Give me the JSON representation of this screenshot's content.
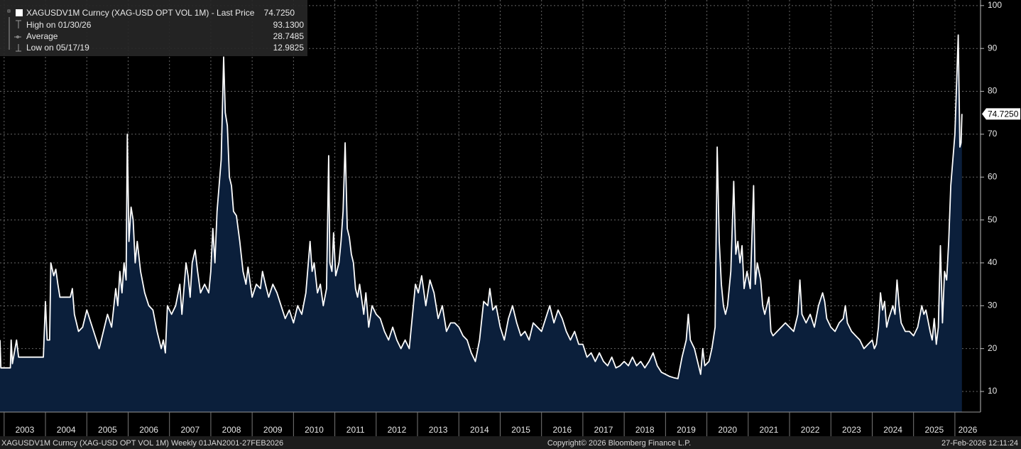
{
  "header": {
    "title": "XAGUSDV1M Curncy (XAG-USD OPT VOL 1M) - Last Price",
    "last_price": "74.7250",
    "rows": [
      {
        "label": "High on 01/30/26",
        "value": "93.1300"
      },
      {
        "label": "Average",
        "value": "28.7485"
      },
      {
        "label": "Low on 05/17/19",
        "value": "12.9825"
      }
    ]
  },
  "chart_data": {
    "type": "area",
    "color": "#ffffff",
    "fill": "#0b1f3b",
    "x": [
      2002.9,
      2002.92,
      2003.15,
      2003.17,
      2003.2,
      2003.3,
      2003.35,
      2003.95,
      2004.0,
      2004.04,
      2004.1,
      2004.13,
      2004.2,
      2004.25,
      2004.3,
      2004.35,
      2004.6,
      2004.65,
      2004.7,
      2004.8,
      2004.9,
      2005.0,
      2005.1,
      2005.2,
      2005.3,
      2005.4,
      2005.5,
      2005.6,
      2005.7,
      2005.75,
      2005.8,
      2005.85,
      2005.9,
      2005.95,
      2005.98,
      2006.02,
      2006.07,
      2006.12,
      2006.17,
      2006.22,
      2006.3,
      2006.4,
      2006.5,
      2006.6,
      2006.7,
      2006.8,
      2006.85,
      2006.9,
      2006.95,
      2007.05,
      2007.15,
      2007.25,
      2007.3,
      2007.4,
      2007.45,
      2007.5,
      2007.55,
      2007.62,
      2007.68,
      2007.75,
      2007.85,
      2007.95,
      2008.0,
      2008.05,
      2008.1,
      2008.15,
      2008.2,
      2008.25,
      2008.31,
      2008.35,
      2008.4,
      2008.45,
      2008.5,
      2008.55,
      2008.62,
      2008.7,
      2008.78,
      2008.85,
      2008.9,
      2009.0,
      2009.1,
      2009.2,
      2009.25,
      2009.32,
      2009.4,
      2009.5,
      2009.6,
      2009.7,
      2009.8,
      2009.9,
      2010.0,
      2010.1,
      2010.2,
      2010.3,
      2010.4,
      2010.45,
      2010.5,
      2010.58,
      2010.65,
      2010.72,
      2010.8,
      2010.85,
      2010.88,
      2010.93,
      2010.97,
      2011.02,
      2011.1,
      2011.15,
      2011.2,
      2011.25,
      2011.3,
      2011.35,
      2011.4,
      2011.45,
      2011.5,
      2011.55,
      2011.6,
      2011.7,
      2011.75,
      2011.82,
      2011.9,
      2012.0,
      2012.1,
      2012.2,
      2012.3,
      2012.4,
      2012.5,
      2012.6,
      2012.7,
      2012.8,
      2012.9,
      2012.95,
      2013.02,
      2013.1,
      2013.2,
      2013.3,
      2013.4,
      2013.5,
      2013.6,
      2013.7,
      2013.8,
      2013.9,
      2014.0,
      2014.1,
      2014.2,
      2014.3,
      2014.4,
      2014.5,
      2014.6,
      2014.7,
      2014.75,
      2014.82,
      2014.9,
      2015.0,
      2015.1,
      2015.2,
      2015.3,
      2015.4,
      2015.5,
      2015.6,
      2015.7,
      2015.8,
      2015.9,
      2016.0,
      2016.1,
      2016.2,
      2016.3,
      2016.4,
      2016.5,
      2016.6,
      2016.7,
      2016.8,
      2016.9,
      2017.0,
      2017.1,
      2017.2,
      2017.3,
      2017.4,
      2017.5,
      2017.6,
      2017.7,
      2017.8,
      2017.9,
      2018.0,
      2018.1,
      2018.2,
      2018.3,
      2018.4,
      2018.5,
      2018.6,
      2018.7,
      2018.8,
      2018.9,
      2019.0,
      2019.1,
      2019.2,
      2019.3,
      2019.4,
      2019.5,
      2019.55,
      2019.6,
      2019.7,
      2019.8,
      2019.85,
      2019.9,
      2019.95,
      2020.05,
      2020.12,
      2020.2,
      2020.25,
      2020.3,
      2020.35,
      2020.4,
      2020.45,
      2020.5,
      2020.58,
      2020.65,
      2020.7,
      2020.75,
      2020.8,
      2020.85,
      2020.9,
      2020.97,
      2021.05,
      2021.13,
      2021.17,
      2021.22,
      2021.3,
      2021.35,
      2021.4,
      2021.45,
      2021.5,
      2021.55,
      2021.6,
      2021.7,
      2021.8,
      2021.9,
      2022.0,
      2022.1,
      2022.15,
      2022.2,
      2022.25,
      2022.3,
      2022.4,
      2022.5,
      2022.6,
      2022.7,
      2022.8,
      2022.85,
      2022.9,
      2023.0,
      2023.1,
      2023.2,
      2023.3,
      2023.35,
      2023.4,
      2023.5,
      2023.6,
      2023.7,
      2023.8,
      2023.9,
      2024.0,
      2024.05,
      2024.1,
      2024.15,
      2024.2,
      2024.25,
      2024.3,
      2024.35,
      2024.4,
      2024.5,
      2024.55,
      2024.6,
      2024.65,
      2024.7,
      2024.8,
      2024.9,
      2025.0,
      2025.1,
      2025.2,
      2025.25,
      2025.3,
      2025.4,
      2025.45,
      2025.5,
      2025.55,
      2025.6,
      2025.65,
      2025.7,
      2025.75,
      2025.8,
      2025.85,
      2025.9,
      2026.0,
      2026.08,
      2026.12,
      2026.15,
      2026.17
    ],
    "values": [
      22,
      15.5,
      15.5,
      22,
      16.5,
      22,
      18,
      18,
      31,
      22,
      22,
      40,
      37,
      38.5,
      35,
      32,
      32,
      34,
      28,
      24,
      25,
      29,
      26,
      23,
      20,
      24,
      28,
      25,
      34,
      30,
      38,
      33,
      40,
      36,
      70,
      45,
      53,
      50,
      40,
      45,
      38,
      33,
      30,
      29,
      24,
      20,
      22,
      19,
      30,
      28,
      30,
      35,
      28,
      40,
      37,
      32,
      40,
      43,
      38,
      33,
      35,
      33,
      38,
      48,
      40,
      52,
      58,
      64,
      88,
      75,
      72,
      60,
      58,
      52,
      51,
      45,
      38,
      35,
      39,
      32,
      35,
      34,
      38,
      35,
      32,
      35,
      33,
      30,
      27,
      29,
      26,
      30,
      28,
      33,
      45,
      38,
      40,
      33,
      35,
      30,
      34,
      65,
      40,
      38,
      47,
      37,
      40,
      45,
      52,
      68,
      48,
      46,
      42,
      40,
      34,
      32,
      35,
      28,
      33,
      25,
      30,
      28,
      27,
      24,
      22,
      25,
      22,
      20,
      22,
      20,
      30,
      35,
      33,
      37,
      30,
      36,
      33,
      27,
      30,
      24,
      26,
      26,
      25,
      23,
      22,
      19,
      17,
      22,
      31,
      30,
      34,
      29,
      30,
      25,
      22,
      27,
      30,
      26,
      23,
      24,
      22,
      26,
      25,
      24,
      27,
      30,
      26,
      29,
      27,
      24,
      22,
      24,
      21,
      21,
      18,
      19,
      17,
      19,
      17,
      16,
      18,
      15.5,
      16,
      17,
      16,
      18,
      16,
      17,
      15.5,
      17,
      19,
      16,
      14.5,
      14,
      13.5,
      13.2,
      13,
      18,
      22,
      28,
      22,
      20,
      16,
      14,
      20,
      16,
      17,
      20,
      25,
      67,
      45,
      35,
      30,
      28,
      30,
      38,
      59,
      42,
      45,
      40,
      44,
      34,
      38,
      34,
      58,
      35,
      40,
      36,
      30,
      28,
      30,
      32,
      24,
      23,
      24,
      25,
      26,
      25,
      24,
      26,
      28,
      36,
      28,
      26,
      28,
      25,
      30,
      33,
      31,
      27,
      25,
      24,
      26,
      27,
      30,
      26,
      24,
      23,
      22,
      20,
      21,
      22,
      20,
      21,
      25,
      33,
      29,
      31,
      25,
      27,
      30,
      28,
      36,
      30,
      26,
      24,
      24,
      23,
      25,
      30,
      28,
      29,
      24,
      22,
      27,
      21,
      25,
      44,
      26,
      38,
      36,
      45,
      58,
      70,
      93.13,
      67,
      68,
      74.725
    ],
    "xlim": [
      2002.9,
      2026.62
    ],
    "xticks": [
      2003,
      2004,
      2005,
      2006,
      2007,
      2008,
      2009,
      2010,
      2011,
      2012,
      2013,
      2014,
      2015,
      2016,
      2017,
      2018,
      2019,
      2020,
      2021,
      2022,
      2023,
      2024,
      2025,
      2026
    ],
    "ylim": [
      5.2,
      101.3
    ],
    "yticks": [
      10,
      20,
      30,
      40,
      50,
      60,
      70,
      80,
      90,
      100
    ],
    "grid": true
  },
  "footer": {
    "left": "XAGUSDV1M Curncy (XAG-USD OPT VOL 1M) Weekly 01JAN2001-27FEB2026",
    "center": "Copyright© 2026 Bloomberg Finance L.P.",
    "right": "27-Feb-2026 12:11:24"
  }
}
